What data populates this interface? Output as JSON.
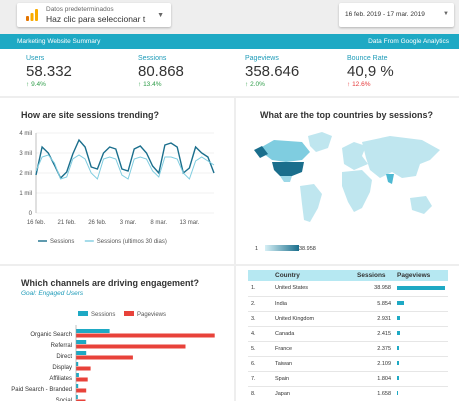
{
  "header": {
    "data_source_label": "Datos predeterminados",
    "data_source_value": "Haz clic para seleccionar t",
    "date_range": "16 feb. 2019 - 17 mar. 2019"
  },
  "banner": {
    "left": "Marketing Website Summary",
    "right": "Data From Google Analytics"
  },
  "kpis": [
    {
      "name": "Users",
      "value": "58.332",
      "change": "9.4%",
      "direction": "up"
    },
    {
      "name": "Sessions",
      "value": "80.868",
      "change": "13.4%",
      "direction": "up"
    },
    {
      "name": "Pageviews",
      "value": "358.646",
      "change": "2.0%",
      "direction": "up"
    },
    {
      "name": "Bounce Rate",
      "value": "40,9 %",
      "change": "12.6%",
      "direction": "up-bad"
    }
  ],
  "trend_panel": {
    "title": "How are site sessions trending?"
  },
  "countries_panel": {
    "title": "What are the top countries by sessions?",
    "scale_min": "1",
    "scale_max": "38.958"
  },
  "channels_panel": {
    "title": "Which channels are driving engagement?",
    "subtitle": "Goal: Engaged Users"
  },
  "table": {
    "headers": [
      "Country",
      "Sessions",
      "Pageviews"
    ],
    "rows": [
      {
        "rank": "1.",
        "country": "United States",
        "sessions": "38.958",
        "pageviews": 100
      },
      {
        "rank": "2.",
        "country": "India",
        "sessions": "5.854",
        "pageviews": 14
      },
      {
        "rank": "3.",
        "country": "United Kingdom",
        "sessions": "2.931",
        "pageviews": 7
      },
      {
        "rank": "4.",
        "country": "Canada",
        "sessions": "2.415",
        "pageviews": 6
      },
      {
        "rank": "5.",
        "country": "France",
        "sessions": "2.375",
        "pageviews": 5
      },
      {
        "rank": "6.",
        "country": "Taiwan",
        "sessions": "2.109",
        "pageviews": 4
      },
      {
        "rank": "7.",
        "country": "Spain",
        "sessions": "1.804",
        "pageviews": 4
      },
      {
        "rank": "8.",
        "country": "Japan",
        "sessions": "1.658",
        "pageviews": 3
      }
    ]
  },
  "colors": {
    "accent": "#1ea9c4",
    "sessions": "#1a6e8c",
    "sessions_prev": "#7fcde0",
    "pageviews": "#e8423a"
  },
  "chart_data": [
    {
      "type": "line",
      "x": [
        "16 feb.",
        "17 feb.",
        "18 feb.",
        "19 feb.",
        "20 feb.",
        "21 feb.",
        "22 feb.",
        "23 feb.",
        "24 feb.",
        "25 feb.",
        "26 feb.",
        "27 feb.",
        "28 feb.",
        "1 mar.",
        "2 mar.",
        "3 mar.",
        "4 mar.",
        "5 mar.",
        "6 mar.",
        "7 mar.",
        "8 mar.",
        "9 mar.",
        "10 mar.",
        "11 mar.",
        "12 mar.",
        "13 mar.",
        "14 mar.",
        "15 mar.",
        "16 mar.",
        "17 mar."
      ],
      "xticks": [
        "16 feb.",
        "21 feb.",
        "26 feb.",
        "3 mar.",
        "8 mar.",
        "13 mar."
      ],
      "ytick_labels": [
        "0",
        "1 mil",
        "2 mil",
        "3 mil",
        "4 mil"
      ],
      "ylim": [
        0,
        4000
      ],
      "series": [
        {
          "name": "Sessions",
          "values": [
            1900,
            3300,
            3000,
            2400,
            1750,
            2050,
            2950,
            3650,
            3300,
            2300,
            2200,
            3000,
            3300,
            3200,
            2200,
            2100,
            3200,
            3350,
            3000,
            2350,
            2000,
            3400,
            3500,
            3300,
            2000,
            2250,
            3300,
            3000,
            2800,
            2000
          ]
        },
        {
          "name": "Sessions (ultimos 30 dias)",
          "values": [
            2100,
            2800,
            2900,
            2500,
            1700,
            1800,
            2700,
            2900,
            2700,
            2000,
            1700,
            2700,
            2800,
            2700,
            1900,
            1700,
            2700,
            2800,
            2700,
            2100,
            1800,
            2800,
            2800,
            2700,
            2000,
            1700,
            2600,
            2800,
            2600,
            2400
          ]
        }
      ]
    },
    {
      "type": "bar",
      "orientation": "horizontal",
      "categories": [
        "Organic Search",
        "Referral",
        "Direct",
        "Display",
        "Affiliates",
        "Paid Search - Branded",
        "Social"
      ],
      "series": [
        {
          "name": "Sessions",
          "values": [
            46000,
            14000,
            14000,
            3000,
            4000,
            3000,
            2500
          ]
        },
        {
          "name": "Pageviews",
          "values": [
            190000,
            150000,
            78000,
            20000,
            16000,
            14000,
            13000
          ]
        }
      ]
    }
  ]
}
